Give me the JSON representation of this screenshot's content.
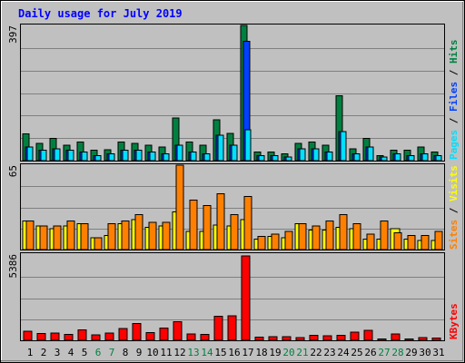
{
  "title": "Daily usage for July 2019",
  "right_labels": {
    "pages": "Pages",
    "files": "Files",
    "hits": "Hits",
    "sites": "Sites",
    "visits": "Visits",
    "kbytes": "KBytes",
    "separator": " / "
  },
  "colors": {
    "background": "#C0C0C0",
    "title": "#0000FF",
    "hits": "#008040",
    "files": "#0040FF",
    "pages": "#00E0FF",
    "visits": "#FFFF00",
    "sites": "#FF8000",
    "kbytes": "#FF0000",
    "weekend_day": "#008040",
    "weekday": "#000000"
  },
  "chart_data": [
    {
      "type": "bar",
      "title": "Daily usage for July 2019",
      "ymax_label": "397",
      "ylim": [
        0,
        397
      ],
      "categories": [
        "1",
        "2",
        "3",
        "4",
        "5",
        "6",
        "7",
        "8",
        "9",
        "10",
        "11",
        "12",
        "13",
        "14",
        "15",
        "16",
        "17",
        "18",
        "19",
        "20",
        "21",
        "22",
        "23",
        "24",
        "25",
        "26",
        "27",
        "28",
        "29",
        "30",
        "31"
      ],
      "weekend_days": [
        "6",
        "7",
        "13",
        "14",
        "20",
        "21",
        "27",
        "28"
      ],
      "series": [
        {
          "name": "Hits",
          "values": [
            78,
            50,
            65,
            45,
            55,
            30,
            32,
            55,
            50,
            45,
            40,
            125,
            55,
            45,
            120,
            80,
            397,
            25,
            25,
            20,
            50,
            55,
            45,
            190,
            35,
            65,
            15,
            30,
            30,
            40,
            25
          ]
        },
        {
          "name": "Files",
          "values": [
            40,
            30,
            35,
            30,
            25,
            15,
            20,
            30,
            30,
            25,
            20,
            45,
            25,
            20,
            75,
            45,
            350,
            15,
            15,
            10,
            35,
            35,
            25,
            85,
            20,
            40,
            10,
            20,
            15,
            20,
            15
          ]
        },
        {
          "name": "Pages",
          "values": [
            40,
            30,
            35,
            30,
            25,
            15,
            20,
            30,
            30,
            25,
            20,
            45,
            25,
            20,
            75,
            45,
            90,
            15,
            15,
            10,
            35,
            35,
            25,
            85,
            20,
            40,
            10,
            20,
            15,
            20,
            15
          ]
        }
      ]
    },
    {
      "type": "bar",
      "ymax_label": "65",
      "ylim": [
        0,
        65
      ],
      "categories": [
        "1",
        "2",
        "3",
        "4",
        "5",
        "6",
        "7",
        "8",
        "9",
        "10",
        "11",
        "12",
        "13",
        "14",
        "15",
        "16",
        "17",
        "18",
        "19",
        "20",
        "21",
        "22",
        "23",
        "24",
        "25",
        "26",
        "27",
        "28",
        "29",
        "30",
        "31"
      ],
      "series": [
        {
          "name": "Visits",
          "values": [
            22,
            18,
            16,
            18,
            20,
            9,
            11,
            20,
            23,
            17,
            18,
            29,
            14,
            14,
            19,
            18,
            23,
            8,
            10,
            9,
            20,
            15,
            15,
            17,
            16,
            8,
            8,
            16,
            8,
            7,
            7
          ]
        },
        {
          "name": "Sites",
          "values": [
            22,
            18,
            18,
            22,
            20,
            9,
            20,
            22,
            27,
            21,
            21,
            65,
            38,
            34,
            43,
            27,
            41,
            10,
            12,
            14,
            20,
            18,
            22,
            27,
            20,
            12,
            22,
            13,
            11,
            11,
            14
          ]
        }
      ]
    },
    {
      "type": "bar",
      "ymax_label": "5386",
      "ylim": [
        0,
        5386
      ],
      "categories": [
        "1",
        "2",
        "3",
        "4",
        "5",
        "6",
        "7",
        "8",
        "9",
        "10",
        "11",
        "12",
        "13",
        "14",
        "15",
        "16",
        "17",
        "18",
        "19",
        "20",
        "21",
        "22",
        "23",
        "24",
        "25",
        "26",
        "27",
        "28",
        "29",
        "30",
        "31"
      ],
      "series": [
        {
          "name": "KBytes",
          "values": [
            580,
            440,
            460,
            370,
            680,
            350,
            470,
            750,
            1080,
            500,
            790,
            1190,
            400,
            380,
            1540,
            1560,
            5386,
            190,
            230,
            220,
            160,
            320,
            280,
            320,
            520,
            650,
            90,
            410,
            100,
            160,
            150
          ]
        }
      ]
    }
  ]
}
